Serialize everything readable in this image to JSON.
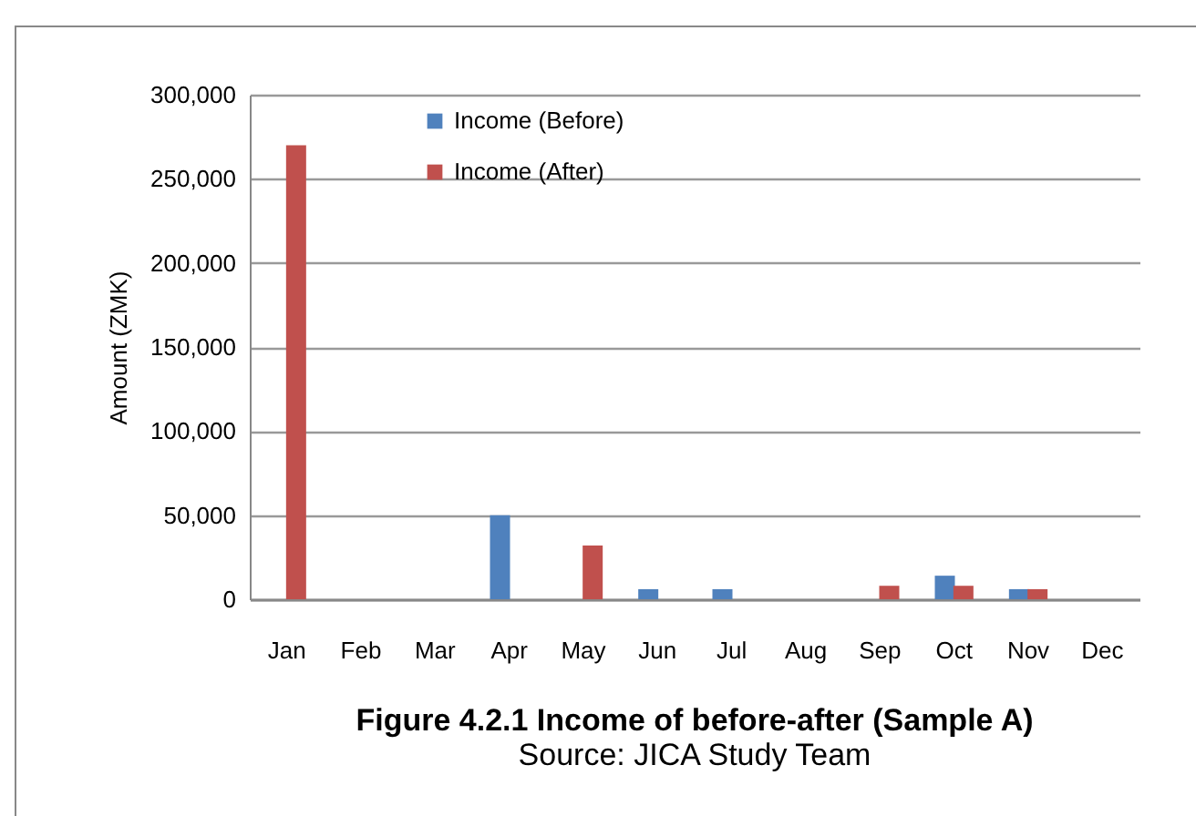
{
  "chart_data": {
    "type": "bar",
    "title": "Figure 4.2.1 Income of before-after (Sample A)",
    "ylabel": "Amount (ZMK)",
    "annotations": [
      "Source: JICA Study Team"
    ],
    "categories": [
      "Jan",
      "Feb",
      "Mar",
      "Apr",
      "May",
      "Jun",
      "Jul",
      "Aug",
      "Sep",
      "Oct",
      "Nov",
      "Dec"
    ],
    "series": [
      {
        "name": "Income (Before)",
        "color": "#4f81bd",
        "values": [
          null,
          null,
          null,
          50000,
          null,
          6000,
          6000,
          null,
          null,
          14000,
          6000,
          null
        ]
      },
      {
        "name": "Income (After)",
        "color": "#c0504d",
        "values": [
          270000,
          null,
          null,
          null,
          32000,
          null,
          null,
          null,
          8000,
          8000,
          6000,
          null
        ]
      }
    ],
    "ylim": [
      0,
      300000
    ],
    "yticks": [
      {
        "value": 0,
        "label": "0"
      },
      {
        "value": 50000,
        "label": "50,000"
      },
      {
        "value": 100000,
        "label": "100,000"
      },
      {
        "value": 150000,
        "label": "150,000"
      },
      {
        "value": 200000,
        "label": "200,000"
      },
      {
        "value": 250000,
        "label": "250,000"
      },
      {
        "value": 300000,
        "label": "300,000"
      }
    ],
    "grid": "y",
    "legend": "top left"
  }
}
